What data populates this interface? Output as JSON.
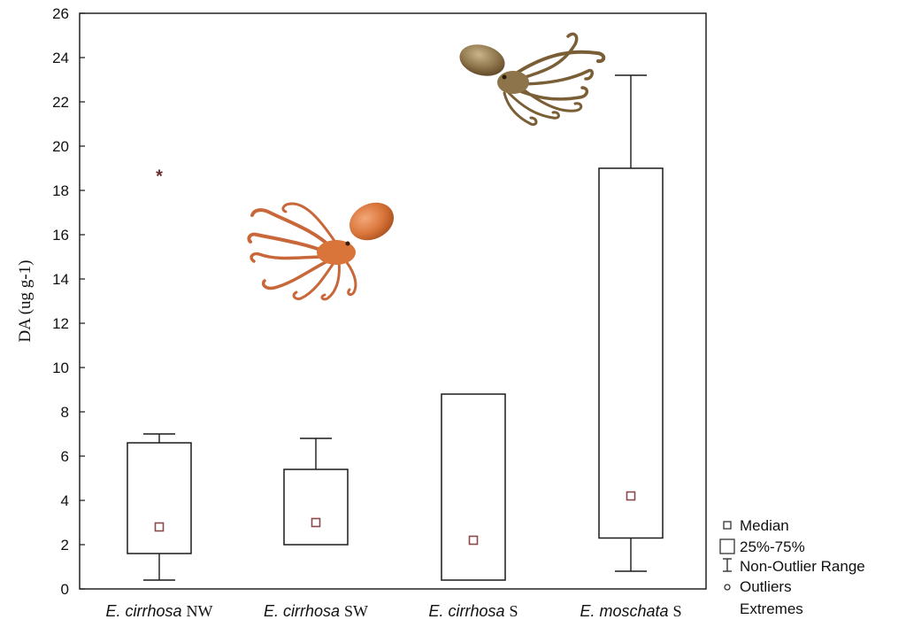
{
  "chart_data": {
    "type": "boxplot",
    "ylabel": "DA (ug g-1)",
    "ylim": [
      0,
      26
    ],
    "yticks": [
      0,
      2,
      4,
      6,
      8,
      10,
      12,
      14,
      16,
      18,
      20,
      22,
      24,
      26
    ],
    "grid": false,
    "legend_position": "bottom-right",
    "categories": [
      {
        "species": "E. cirrhosa",
        "region": "NW"
      },
      {
        "species": "E. cirrhosa",
        "region": "SW"
      },
      {
        "species": "E. cirrhosa",
        "region": "S"
      },
      {
        "species": "E. moschata",
        "region": "S"
      }
    ],
    "boxes": [
      {
        "median": 2.8,
        "q1": 1.6,
        "q3": 6.6,
        "whisker_low": 0.4,
        "whisker_high": 7.0,
        "extremes": [
          18.7
        ]
      },
      {
        "median": 3.0,
        "q1": 2.0,
        "q3": 5.4,
        "whisker_low": 2.0,
        "whisker_high": 6.8,
        "extremes": []
      },
      {
        "median": 2.2,
        "q1": 0.4,
        "q3": 8.8,
        "whisker_low": 0.4,
        "whisker_high": 8.8,
        "extremes": []
      },
      {
        "median": 4.2,
        "q1": 2.3,
        "q3": 19.0,
        "whisker_low": 0.8,
        "whisker_high": 23.2,
        "extremes": []
      }
    ],
    "legend": [
      "Median",
      "25%-75%",
      "Non-Outlier Range",
      "Outliers",
      "Extremes"
    ],
    "colors": {
      "box": "#1a1a1a",
      "median": "#8b4a4a",
      "extreme": "#6b2a2a",
      "octopus_orange": "#d97a3a",
      "octopus_brown": "#8a6a3a"
    }
  }
}
